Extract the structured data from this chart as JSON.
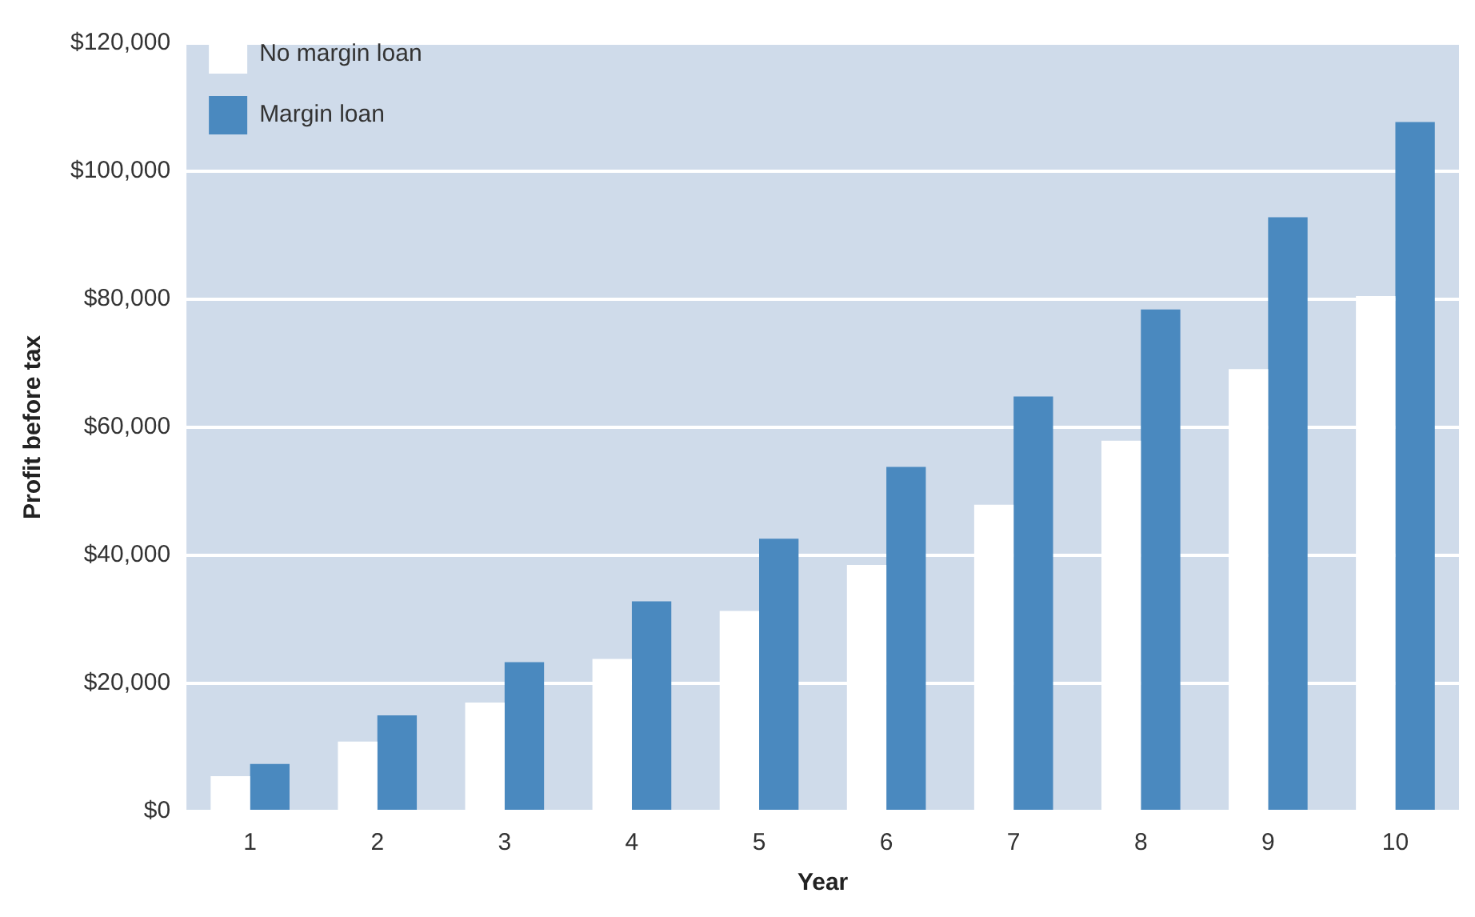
{
  "chart_data": {
    "type": "bar",
    "xlabel": "Year",
    "ylabel": "Profit before tax",
    "categories": [
      "1",
      "2",
      "3",
      "4",
      "5",
      "6",
      "7",
      "8",
      "9",
      "10"
    ],
    "series": [
      {
        "name": "No margin loan",
        "color": "#ffffff",
        "values": [
          5500,
          10900,
          17000,
          23800,
          31300,
          38500,
          47900,
          57900,
          69100,
          80500
        ]
      },
      {
        "name": "Margin loan",
        "color": "#4a89bf",
        "values": [
          7400,
          15000,
          23300,
          32800,
          42600,
          53800,
          64800,
          78400,
          92800,
          107700
        ]
      }
    ],
    "ylim": [
      0,
      120000
    ],
    "yticks": [
      {
        "value": 0,
        "label": "$0"
      },
      {
        "value": 20000,
        "label": "$20,000"
      },
      {
        "value": 40000,
        "label": "$40,000"
      },
      {
        "value": 60000,
        "label": "$60,000"
      },
      {
        "value": 80000,
        "label": "$80,000"
      },
      {
        "value": 100000,
        "label": "$100,000"
      },
      {
        "value": 120000,
        "label": "$120,000"
      }
    ],
    "grid": "y",
    "legend": "top left"
  }
}
